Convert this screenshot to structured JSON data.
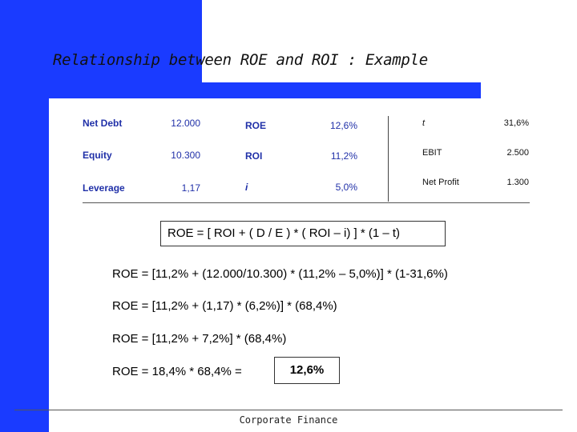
{
  "title": "Relationship between ROE and ROI : Example",
  "table": {
    "left": [
      {
        "label": "Net Debt",
        "value": "12.000"
      },
      {
        "label": "Equity",
        "value": "10.300"
      },
      {
        "label": "Leverage",
        "value": "1,17"
      }
    ],
    "middle": [
      {
        "label": "ROE",
        "value": "12,6%"
      },
      {
        "label": "ROI",
        "value": "11,2%"
      },
      {
        "label": "i",
        "value": "5,0%"
      }
    ],
    "right": [
      {
        "label": "t",
        "value": "31,6%"
      },
      {
        "label": "EBIT",
        "value": "2.500"
      },
      {
        "label": "Net Profit",
        "value": "1.300"
      }
    ]
  },
  "formula": "ROE = [ ROI + ( D / E ) * ( ROI – i) ] * (1 – t)",
  "steps": [
    "ROE = [11,2% + (12.000/10.300) * (11,2% – 5,0%)] * (1-31,6%)",
    "ROE = [11,2% + (1,17) * (6,2%)] * (68,4%)",
    "ROE = [11,2% + 7,2%] * (68,4%)",
    "ROE = 18,4% * 68,4% ="
  ],
  "result": "12,6%",
  "footer": "Corporate Finance",
  "colors": {
    "accent": "#1a3bff",
    "table_text": "#2030a8"
  }
}
